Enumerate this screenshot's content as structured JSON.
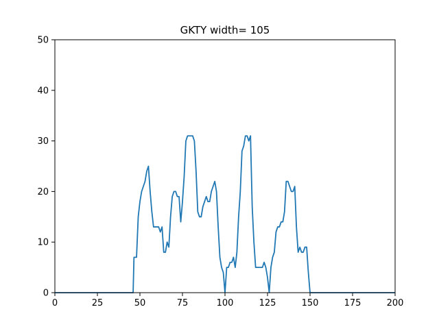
{
  "chart_data": {
    "type": "line",
    "title": "GKTY width= 105",
    "xlabel": "",
    "ylabel": "",
    "xlim": [
      0,
      200
    ],
    "ylim": [
      0,
      50
    ],
    "xticks": [
      0,
      25,
      50,
      75,
      100,
      125,
      150,
      175,
      200
    ],
    "yticks": [
      0,
      10,
      20,
      30,
      40,
      50
    ],
    "grid": false,
    "series": [
      {
        "color": "#1f77b4",
        "x": [
          0,
          46,
          46.5,
          47,
          48,
          49,
          50,
          51,
          52,
          53,
          54,
          55,
          56,
          57,
          58,
          59,
          60,
          61,
          62,
          63,
          64,
          65,
          66,
          67,
          68,
          69,
          70,
          71,
          72,
          73,
          74,
          75,
          76,
          77,
          78,
          79,
          80,
          81,
          82,
          83,
          84,
          85,
          86,
          87,
          88,
          89,
          90,
          91,
          92,
          93,
          94,
          95,
          96,
          97,
          98,
          99,
          100,
          101,
          102,
          103,
          104,
          105,
          106,
          107,
          108,
          109,
          110,
          111,
          112,
          113,
          114,
          115,
          116,
          117,
          118,
          119,
          120,
          121,
          122,
          123,
          124,
          125,
          126,
          127,
          128,
          129,
          130,
          131,
          132,
          133,
          134,
          135,
          136,
          137,
          138,
          139,
          140,
          141,
          142,
          143,
          144,
          145,
          146,
          147,
          148,
          149,
          150,
          151,
          152,
          200
        ],
        "y": [
          0,
          0,
          7,
          7,
          7,
          15,
          18,
          20,
          21,
          22,
          24,
          25,
          20,
          16,
          13,
          13,
          13,
          13,
          12,
          13,
          8,
          8,
          10,
          9,
          15,
          19,
          20,
          20,
          19,
          19,
          14,
          18,
          23,
          30,
          31,
          31,
          31,
          31,
          30,
          24,
          16,
          15,
          15,
          17,
          18,
          19,
          18,
          18,
          20,
          21,
          22,
          20,
          13,
          7,
          5,
          4,
          0,
          5,
          5,
          6,
          6,
          7,
          5,
          8,
          15,
          20,
          28,
          29,
          31,
          31,
          30,
          31,
          17,
          10,
          5,
          5,
          5,
          5,
          5,
          6,
          5,
          3,
          0,
          5,
          7,
          8,
          12,
          13,
          13,
          14,
          14,
          16,
          22,
          22,
          21,
          20,
          20,
          21,
          13,
          8,
          9,
          8,
          8,
          9,
          9,
          4,
          0,
          0,
          0,
          0
        ]
      }
    ]
  }
}
